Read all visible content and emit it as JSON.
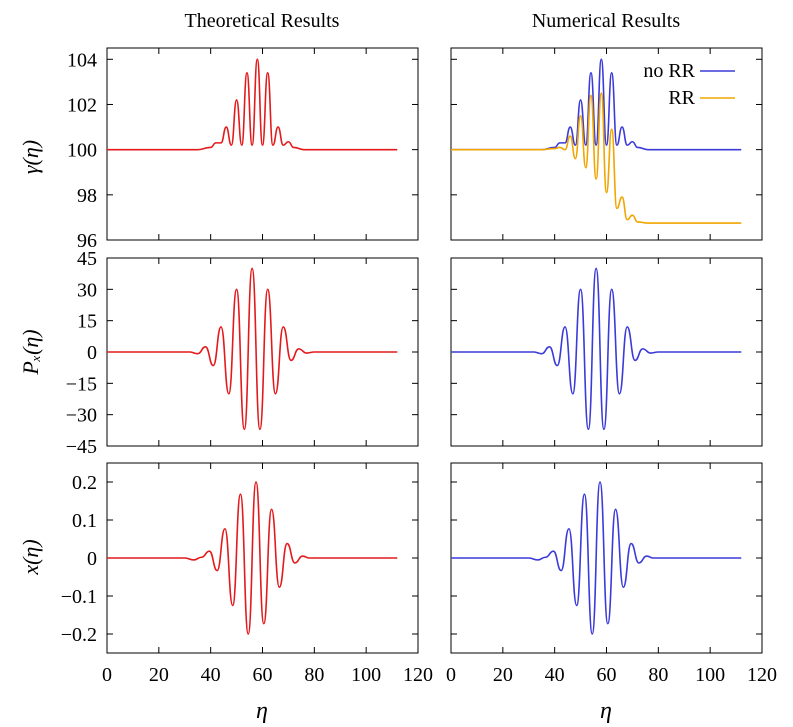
{
  "column_titles": [
    "Theoretical Results",
    "Numerical Results"
  ],
  "ylabels": [
    "γ(η)",
    "Pₓ(η)",
    "x(η)"
  ],
  "xlabel": "η",
  "colors": {
    "theory": "#e31a1c",
    "noRR": "#3b3bd9",
    "RR": "#f0a500"
  },
  "chart_data": [
    {
      "type": "line",
      "panel": "gamma-theoretical",
      "title": "Theoretical Results",
      "xlabel": "",
      "ylabel": "γ(η)",
      "xlim": [
        0,
        120
      ],
      "ylim": [
        96,
        104.5
      ],
      "xticks": [
        0,
        20,
        40,
        60,
        80,
        100,
        120
      ],
      "yticks": [
        96,
        98,
        100,
        102,
        104
      ],
      "xtick_labels": [
        "",
        "",
        "",
        "",
        "",
        "",
        ""
      ],
      "ytick_labels": [
        "96",
        "98",
        "100",
        "102",
        "104"
      ],
      "series": [
        {
          "color": "#e31a1c",
          "x": [
            0,
            35,
            40,
            42,
            44,
            46,
            48,
            50,
            52,
            54,
            56,
            58,
            60,
            62,
            64,
            66,
            68,
            70,
            72,
            76,
            112
          ],
          "y": [
            100,
            100,
            100.1,
            100.3,
            100.3,
            101.0,
            100.2,
            102.2,
            100.2,
            103.4,
            100.2,
            104.0,
            100.2,
            103.4,
            100.2,
            101.0,
            100.2,
            100.35,
            100.1,
            100,
            100
          ]
        }
      ]
    },
    {
      "type": "line",
      "panel": "gamma-numerical",
      "title": "Numerical Results",
      "xlabel": "",
      "ylabel": "",
      "xlim": [
        0,
        120
      ],
      "ylim": [
        96,
        104.5
      ],
      "xticks": [
        0,
        20,
        40,
        60,
        80,
        100,
        120
      ],
      "yticks": [
        96,
        98,
        100,
        102,
        104
      ],
      "xtick_labels": [
        "",
        "",
        "",
        "",
        "",
        "",
        ""
      ],
      "ytick_labels": [
        "",
        "",
        "",
        "",
        ""
      ],
      "legend_position": "top-right",
      "series": [
        {
          "name": "no RR",
          "color": "#3b3bd9",
          "x": [
            0,
            35,
            40,
            42,
            44,
            46,
            48,
            50,
            52,
            54,
            56,
            58,
            60,
            62,
            64,
            66,
            68,
            70,
            72,
            76,
            112
          ],
          "y": [
            100,
            100,
            100.1,
            100.3,
            100.3,
            101.0,
            100.2,
            102.2,
            100.2,
            103.4,
            100.2,
            104.0,
            100.2,
            103.4,
            100.2,
            101.0,
            100.2,
            100.35,
            100.1,
            100,
            100
          ]
        },
        {
          "name": "RR",
          "color": "#f0a500",
          "x": [
            0,
            35,
            40,
            42,
            44,
            46,
            48,
            50,
            52,
            54,
            56,
            58,
            60,
            62,
            64,
            66,
            68,
            70,
            72,
            76,
            112
          ],
          "y": [
            100,
            100,
            100.05,
            100.1,
            100.0,
            100.6,
            99.6,
            101.5,
            99.2,
            102.4,
            98.7,
            102.5,
            98.1,
            100.9,
            97.4,
            97.9,
            96.9,
            97.1,
            96.8,
            96.75,
            96.75
          ]
        }
      ]
    },
    {
      "type": "line",
      "panel": "px-theoretical",
      "xlabel": "",
      "ylabel": "Pₓ(η)",
      "xlim": [
        0,
        120
      ],
      "ylim": [
        -45,
        45
      ],
      "xticks": [
        0,
        20,
        40,
        60,
        80,
        100,
        120
      ],
      "yticks": [
        -45,
        -30,
        -15,
        0,
        15,
        30,
        45
      ],
      "xtick_labels": [
        "",
        "",
        "",
        "",
        "",
        "",
        ""
      ],
      "ytick_labels": [
        "−45",
        "−30",
        "−15",
        "0",
        "15",
        "30",
        "45"
      ],
      "series": [
        {
          "color": "#e31a1c",
          "x": [
            0,
            32,
            35,
            38,
            41,
            44,
            47,
            50,
            53,
            56,
            59,
            62,
            65,
            68,
            71,
            74,
            77,
            80,
            112
          ],
          "y": [
            0,
            0,
            -0.8,
            2.5,
            -6.5,
            12,
            -20,
            30,
            -37,
            40,
            -37,
            30,
            -20,
            12,
            -4,
            1.5,
            -0.5,
            0,
            0
          ]
        }
      ]
    },
    {
      "type": "line",
      "panel": "px-numerical",
      "xlabel": "",
      "ylabel": "",
      "xlim": [
        0,
        120
      ],
      "ylim": [
        -45,
        45
      ],
      "xticks": [
        0,
        20,
        40,
        60,
        80,
        100,
        120
      ],
      "yticks": [
        -45,
        -30,
        -15,
        0,
        15,
        30,
        45
      ],
      "xtick_labels": [
        "",
        "",
        "",
        "",
        "",
        "",
        ""
      ],
      "ytick_labels": [
        "",
        "",
        "",
        "",
        "",
        "",
        ""
      ],
      "series": [
        {
          "color": "#3b3bd9",
          "x": [
            0,
            32,
            35,
            38,
            41,
            44,
            47,
            50,
            53,
            56,
            59,
            62,
            65,
            68,
            71,
            74,
            77,
            80,
            112
          ],
          "y": [
            0,
            0,
            -0.8,
            2.5,
            -6.5,
            12,
            -20,
            30,
            -37,
            40,
            -37,
            30,
            -20,
            12,
            -4,
            1.5,
            -0.5,
            0,
            0
          ]
        }
      ]
    },
    {
      "type": "line",
      "panel": "x-theoretical",
      "xlabel": "η",
      "ylabel": "x(η)",
      "xlim": [
        0,
        120
      ],
      "ylim": [
        -0.25,
        0.25
      ],
      "xticks": [
        0,
        20,
        40,
        60,
        80,
        100,
        120
      ],
      "yticks": [
        -0.2,
        -0.1,
        0,
        0.1,
        0.2
      ],
      "xtick_labels": [
        "0",
        "20",
        "40",
        "60",
        "80",
        "100",
        "120"
      ],
      "ytick_labels": [
        "−0.2",
        "−0.1",
        "0",
        "0.1",
        "0.2"
      ],
      "series": [
        {
          "color": "#e31a1c",
          "x": [
            0,
            30,
            33.5,
            36.5,
            39.5,
            42.5,
            45.5,
            48.5,
            51.5,
            54.5,
            57.5,
            60.5,
            63.5,
            66.5,
            69.5,
            72.5,
            75.5,
            78,
            112
          ],
          "y": [
            0,
            0,
            -0.005,
            0.002,
            0.018,
            -0.033,
            0.077,
            -0.125,
            0.168,
            -0.2,
            0.2,
            -0.173,
            0.128,
            -0.077,
            0.038,
            -0.013,
            0.005,
            0,
            0
          ]
        }
      ]
    },
    {
      "type": "line",
      "panel": "x-numerical",
      "xlabel": "η",
      "ylabel": "",
      "xlim": [
        0,
        120
      ],
      "ylim": [
        -0.25,
        0.25
      ],
      "xticks": [
        0,
        20,
        40,
        60,
        80,
        100,
        120
      ],
      "yticks": [
        -0.2,
        -0.1,
        0,
        0.1,
        0.2
      ],
      "xtick_labels": [
        "0",
        "20",
        "40",
        "60",
        "80",
        "100",
        "120"
      ],
      "ytick_labels": [
        "",
        "",
        "",
        "",
        ""
      ],
      "series": [
        {
          "color": "#3b3bd9",
          "x": [
            0,
            30,
            33.5,
            36.5,
            39.5,
            42.5,
            45.5,
            48.5,
            51.5,
            54.5,
            57.5,
            60.5,
            63.5,
            66.5,
            69.5,
            72.5,
            75.5,
            78,
            112
          ],
          "y": [
            0,
            0,
            -0.005,
            0.002,
            0.018,
            -0.033,
            0.077,
            -0.125,
            0.168,
            -0.2,
            0.2,
            -0.173,
            0.128,
            -0.077,
            0.038,
            -0.013,
            0.005,
            0,
            0
          ]
        }
      ]
    }
  ]
}
